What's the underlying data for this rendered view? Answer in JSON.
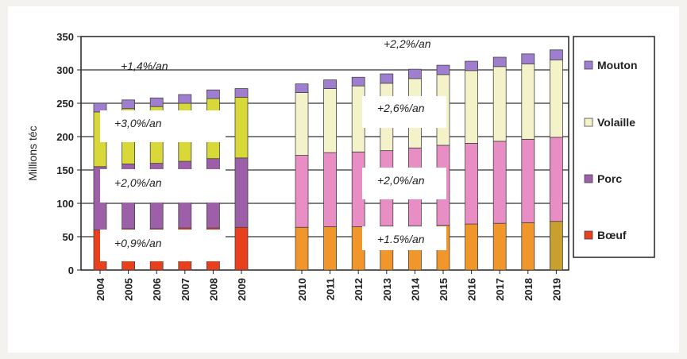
{
  "chart_data": {
    "type": "bar",
    "stacked": true,
    "ylabel": "Millions téc",
    "ylim": [
      0,
      350
    ],
    "yticks": [
      0,
      50,
      100,
      150,
      200,
      250,
      300,
      350
    ],
    "grid": true,
    "legend_position": "right",
    "categories": [
      "2004",
      "2005",
      "2006",
      "2007",
      "2008",
      "2009",
      "2010",
      "2011",
      "2012",
      "2013",
      "2014",
      "2015",
      "2016",
      "2017",
      "2018",
      "2019"
    ],
    "gap_after_index": 5,
    "series": [
      {
        "name": "Bœuf",
        "colors": {
          "historical": "#e8401c",
          "projection": "#f0962a",
          "last": "#c8a030"
        },
        "values": [
          60,
          62,
          62,
          63,
          63,
          64,
          64,
          65,
          65,
          66,
          66,
          67,
          69,
          70,
          71,
          73
        ]
      },
      {
        "name": "Porc",
        "colors": {
          "historical": "#9c5fa8",
          "projection": "#e98dc5"
        },
        "values": [
          95,
          97,
          98,
          100,
          104,
          104,
          108,
          111,
          112,
          113,
          117,
          120,
          121,
          123,
          125,
          126
        ]
      },
      {
        "name": "Volaille",
        "colors": {
          "historical": "#d8d838",
          "projection": "#f4f2c8"
        },
        "values": [
          82,
          83,
          85,
          87,
          90,
          91,
          94,
          96,
          99,
          101,
          104,
          106,
          109,
          112,
          113,
          116
        ]
      },
      {
        "name": "Mouton",
        "colors": {
          "historical": "#9f7ed0",
          "projection": "#9f7ed0"
        },
        "values": [
          13,
          13,
          13,
          13,
          13,
          13,
          13,
          13,
          13,
          14,
          14,
          14,
          14,
          14,
          15,
          15
        ]
      }
    ],
    "legend_colors": [
      "#9f7ed0",
      "#f4f2c8",
      "#9c5fa8",
      "#e8401c"
    ],
    "annotations": [
      "+1,4%/an",
      "+3,0%/an",
      "+2,0%/an",
      "+0,9%/an",
      "+2,2%/an",
      "+2,6%/an",
      "+2,0%/an",
      "+1.5%/an"
    ]
  }
}
